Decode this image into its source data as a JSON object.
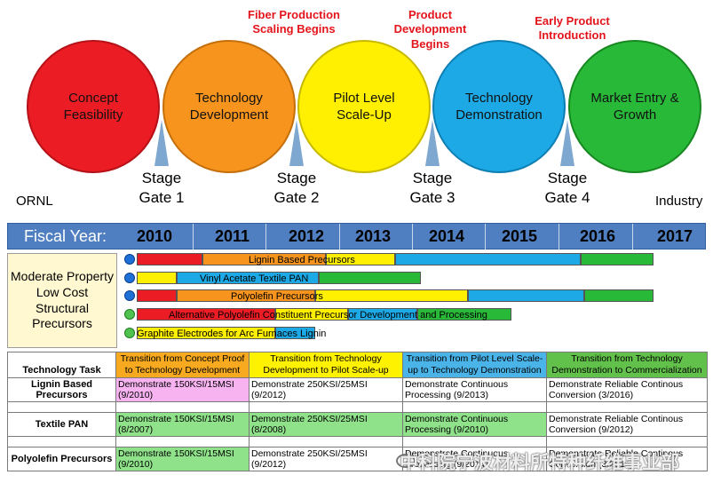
{
  "stages": [
    {
      "label": "Concept Feasibility",
      "color": "#ec1c24"
    },
    {
      "label": "Technology\nDevelopment",
      "color": "#f7941d"
    },
    {
      "label": "Pilot Level\nScale-Up",
      "color": "#ffef00"
    },
    {
      "label": "Technology\nDemonstration",
      "color": "#1ca9e6"
    },
    {
      "label": "Market Entry &\nGrowth",
      "color": "#29b939"
    }
  ],
  "gates": [
    "Stage\nGate 1",
    "Stage\nGate 2",
    "Stage\nGate 3",
    "Stage\nGate 4"
  ],
  "milestones": [
    "Fiber Production\nScaling Begins",
    "Product\nDevelopment\nBegins",
    "Early Product\nIntroduction"
  ],
  "side_labels": {
    "left": "ORNL",
    "right": "Industry"
  },
  "fiscal_year": {
    "label": "Fiscal Year:",
    "years": [
      "2010",
      "2011",
      "2012",
      "2013",
      "2014",
      "2015",
      "2016",
      "2017"
    ]
  },
  "category": "Moderate Property\nLow Cost\nStructural\nPrecursors",
  "gantt_rows": [
    {
      "label": "Lignin Based Precursors",
      "icon": "blue-circle-icon",
      "segments": [
        {
          "color": "#ec1c24",
          "start": 2010.0,
          "end": 2010.9
        },
        {
          "color": "#f7941d",
          "start": 2010.9,
          "end": 2012.6
        },
        {
          "color": "#ffef00",
          "start": 2012.6,
          "end": 2013.55
        },
        {
          "color": "#1ca9e6",
          "start": 2013.55,
          "end": 2016.1
        },
        {
          "color": "#29b939",
          "start": 2016.1,
          "end": 2017.1
        }
      ]
    },
    {
      "label": "Vinyl Acetate Textile PAN",
      "icon": "blue-circle-icon",
      "segments": [
        {
          "color": "#ffef00",
          "start": 2010.0,
          "end": 2010.55
        },
        {
          "color": "#1ca9e6",
          "start": 2010.55,
          "end": 2012.5
        },
        {
          "color": "#29b939",
          "start": 2012.5,
          "end": 2013.9
        }
      ]
    },
    {
      "label": "Polyolefin Precursors",
      "icon": "blue-circle-icon",
      "segments": [
        {
          "color": "#ec1c24",
          "start": 2010.0,
          "end": 2010.55
        },
        {
          "color": "#f7941d",
          "start": 2010.55,
          "end": 2012.45
        },
        {
          "color": "#ffef00",
          "start": 2012.45,
          "end": 2014.55
        },
        {
          "color": "#1ca9e6",
          "start": 2014.55,
          "end": 2016.15
        },
        {
          "color": "#29b939",
          "start": 2016.15,
          "end": 2017.1
        }
      ]
    },
    {
      "label": "Alternative Polyolefin Constituent Precursor Development and Processing",
      "icon": "green-circle-icon",
      "segments": [
        {
          "color": "#ec1c24",
          "start": 2010.0,
          "end": 2011.9
        },
        {
          "color": "#ffef00",
          "start": 2011.9,
          "end": 2012.9
        },
        {
          "color": "#1ca9e6",
          "start": 2012.9,
          "end": 2013.85
        },
        {
          "color": "#29b939",
          "start": 2013.85,
          "end": 2015.15
        }
      ]
    },
    {
      "label": "Graphite Electrodes for Arc Furnaces Lignin",
      "icon": "green-circle-icon",
      "segments": [
        {
          "color": "#ffef00",
          "start": 2010.0,
          "end": 2011.9
        },
        {
          "color": "#1ca9e6",
          "start": 2011.9,
          "end": 2012.45
        }
      ]
    }
  ],
  "table": {
    "header": [
      "Technology Task",
      "Transition from Concept Proof\nto Technology Development",
      "Transition from Technology\nDevelopment to Pilot Scale-up",
      "Transition from Pilot Level Scale-\nup to Technology Demonstration",
      "Transition from Technology\nDemonstration to Commercialization"
    ],
    "rows": [
      {
        "task": "Lignin Based\nPrecursors",
        "cells": [
          "Demonstrate 150KSI/15MSI\n(9/2010)",
          "Demonstrate 250KSI/25MSI\n(9/2012)",
          "Demonstrate Continuous\nProcessing (9/2013)",
          "Demonstrate Reliable Continous\nConversion (3/2016)"
        ],
        "fills": [
          "pink",
          "none",
          "none",
          "none"
        ]
      },
      {
        "task": "Textile PAN",
        "cells": [
          "Demonstrate 150KSI/15MSI\n(8/2007)",
          "Demonstrate 250KSI/25MSI\n(8/2008)",
          "Demonstrate Continuous\nProcessing (9/2010)",
          "Demonstrate Reliable Continous\nConversion (9/2012)"
        ],
        "fills": [
          "green",
          "green",
          "green",
          "none"
        ]
      },
      {
        "task": "Polyolefin Precursors",
        "cells": [
          "Demonstrate 150KSI/15MSI\n(9/2010)",
          "Demonstrate 250KSI/25MSI\n(9/2012)",
          "Demonstrate Continuous\nProcessing (9/2014)",
          "Demonstrate Reliable Continous\nConversion (3/2016)"
        ],
        "fills": [
          "green",
          "none",
          "none",
          "none"
        ]
      }
    ]
  },
  "watermark": "中科院宁波材料所特种纤维事业部"
}
